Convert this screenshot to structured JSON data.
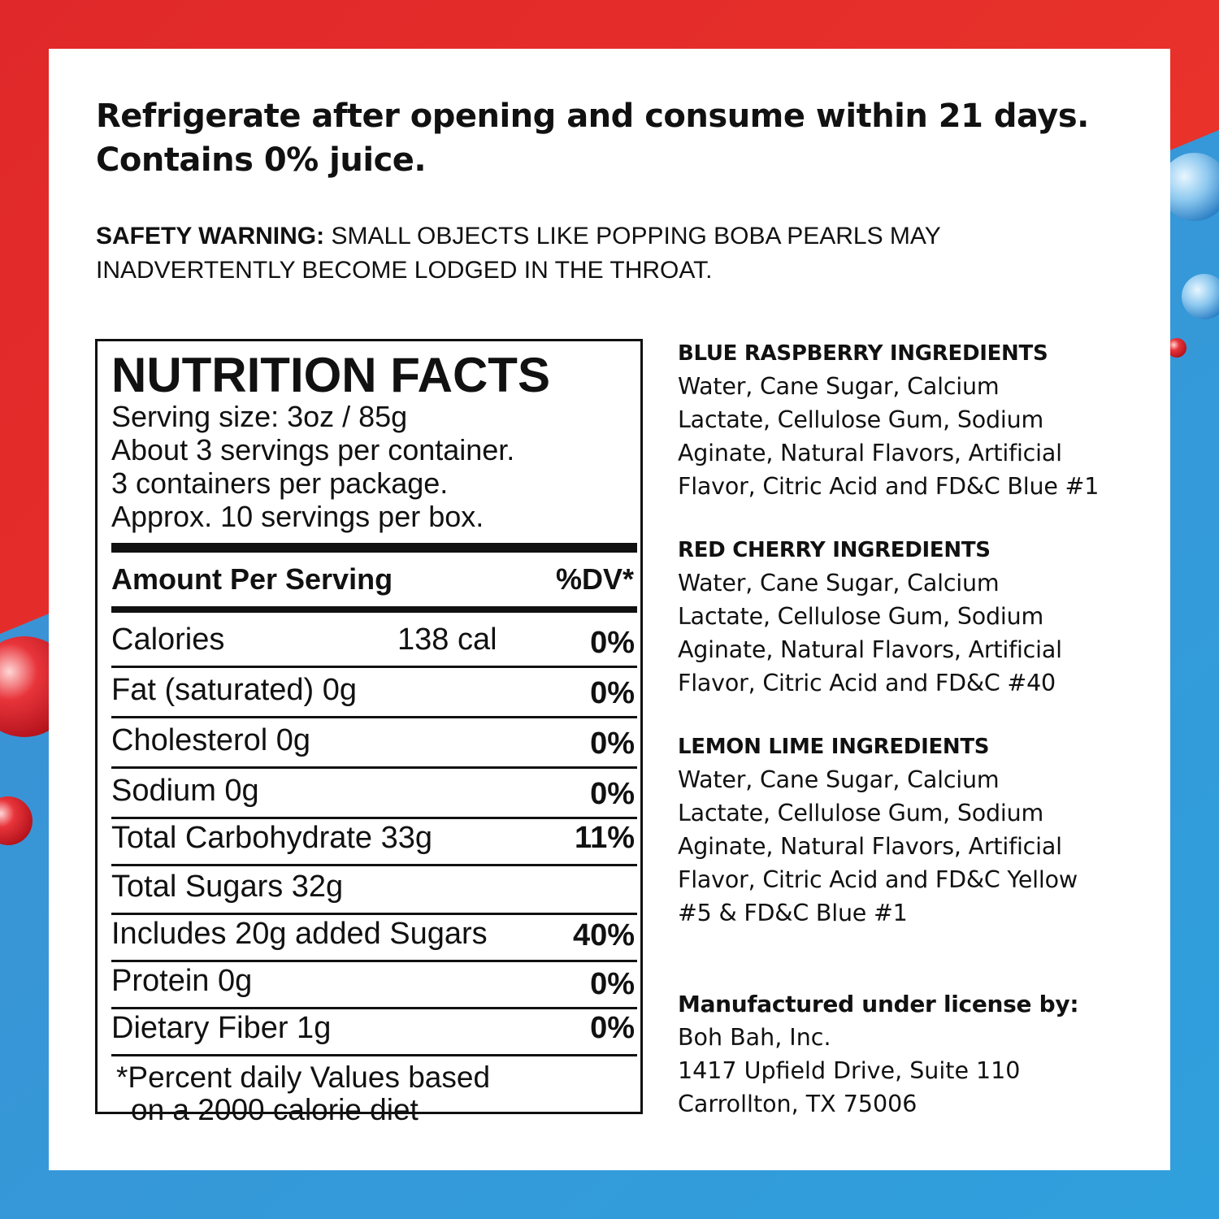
{
  "colors": {
    "red": "#e63329",
    "blue": "#3a90d6",
    "ink": "#111111"
  },
  "headline": [
    "Refrigerate after opening and consume within 21 days.",
    "Contains 0% juice."
  ],
  "warning": {
    "label": "SAFETY WARNING:",
    "line1": " SMALL OBJECTS LIKE POPPING BOBA PEARLS MAY",
    "line2": "INADVERTENTLY BECOME LODGED IN THE THROAT."
  },
  "nutrition": {
    "title": "NUTRITION FACTS",
    "serving_lines": [
      "Serving size: 3oz / 85g",
      "About 3 servings per container.",
      "3 containers per package.",
      "Approx. 10 servings per box."
    ],
    "amount_header": "Amount Per Serving",
    "dv_header": "%DV*",
    "rows": [
      {
        "label": "Calories",
        "mid": "138 cal",
        "pct": "0%"
      },
      {
        "label": "Fat (saturated)  0g",
        "mid": "",
        "pct": "0%"
      },
      {
        "label": "Cholesterol  0g",
        "mid": "",
        "pct": "0%"
      },
      {
        "label": "Sodium  0g",
        "mid": "",
        "pct": "0%"
      },
      {
        "label": "Total Carbohydrate  33g",
        "mid": "",
        "pct": "11%"
      },
      {
        "label": "Total Sugars  32g",
        "mid": "",
        "pct": ""
      },
      {
        "label": "Includes 20g added Sugars",
        "mid": "",
        "pct": "40%"
      },
      {
        "label": "Protein  0g",
        "mid": "",
        "pct": "0%"
      },
      {
        "label": "Dietary Fiber 1g",
        "mid": "",
        "pct": "0%"
      }
    ],
    "footnote": [
      "*Percent daily Values based",
      "on a 2000 calorie diet"
    ]
  },
  "ingredients": [
    {
      "heading": "BLUE RASPBERRY INGREDIENTS",
      "lines": [
        "Water, Cane Sugar, Calcium",
        "Lactate, Cellulose Gum, Sodium",
        "Aginate, Natural Flavors, Artificial",
        "Flavor, Citric Acid and FD&C Blue #1"
      ]
    },
    {
      "heading": "RED CHERRY INGREDIENTS",
      "lines": [
        "Water, Cane Sugar, Calcium",
        "Lactate, Cellulose Gum, Sodium",
        "Aginate, Natural Flavors, Artificial",
        "Flavor, Citric Acid and FD&C #40"
      ]
    },
    {
      "heading": "LEMON LIME INGREDIENTS",
      "lines": [
        "Water, Cane Sugar, Calcium",
        "Lactate, Cellulose Gum, Sodium",
        "Aginate, Natural Flavors, Artificial",
        "Flavor, Citric Acid and FD&C Yellow",
        "#5 & FD&C Blue #1"
      ]
    }
  ],
  "manufacturer": {
    "heading": "Manufactured under license by:",
    "lines": [
      "Boh Bah, Inc.",
      "1417 Upfield Drive, Suite 110",
      "Carrollton, TX 75006"
    ]
  }
}
